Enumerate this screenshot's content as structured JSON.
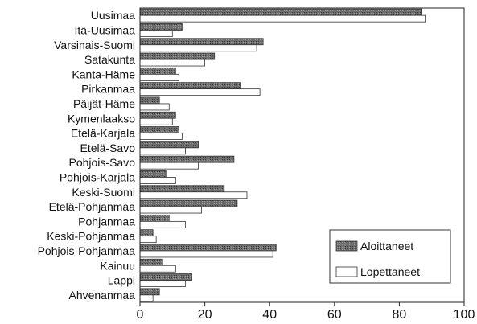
{
  "chart_data": {
    "type": "bar",
    "orientation": "horizontal",
    "title": "",
    "xlabel": "",
    "ylabel": "",
    "xlim": [
      0,
      100
    ],
    "x_ticks": [
      0,
      20,
      40,
      60,
      80,
      100
    ],
    "grid": false,
    "legend_position": "bottom-right",
    "categories": [
      "Uusimaa",
      "Itä-Uusimaa",
      "Varsinais-Suomi",
      "Satakunta",
      "Kanta-Häme",
      "Pirkanmaa",
      "Päijät-Häme",
      "Kymenlaakso",
      "Etelä-Karjala",
      "Etelä-Savo",
      "Pohjois-Savo",
      "Pohjois-Karjala",
      "Keski-Suomi",
      "Etelä-Pohjanmaa",
      "Pohjanmaa",
      "Keski-Pohjanmaa",
      "Pohjois-Pohjanmaa",
      "Kainuu",
      "Lappi",
      "Ahvenanmaa"
    ],
    "series": [
      {
        "name": "Aloittaneet",
        "color": "#6e6e6e",
        "values": [
          87,
          13,
          38,
          23,
          11,
          31,
          6,
          11,
          12,
          18,
          29,
          8,
          26,
          30,
          9,
          4,
          42,
          7,
          16,
          6
        ]
      },
      {
        "name": "Lopettaneet",
        "color": "#ffffff",
        "values": [
          88,
          10,
          36,
          20,
          12,
          37,
          9,
          10,
          13,
          14,
          18,
          11,
          33,
          19,
          14,
          5,
          41,
          11,
          14,
          4
        ]
      }
    ]
  }
}
